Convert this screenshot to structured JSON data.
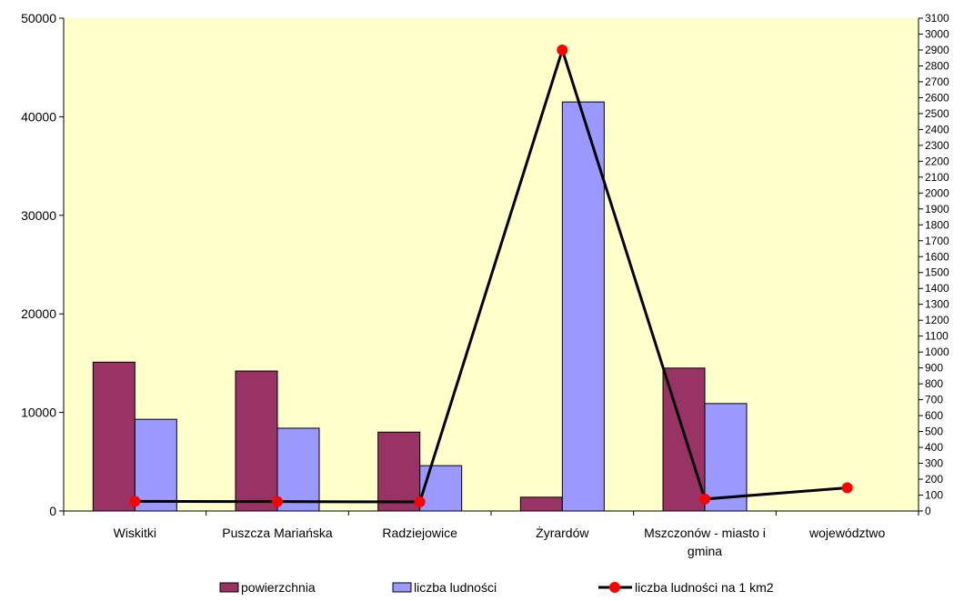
{
  "chart_data": {
    "type": "bar",
    "categories": [
      "Wiskitki",
      "Puszcza Mariańska",
      "Radziejowice",
      "Żyrardów",
      "Mszczonów - miasto i gmina",
      "województwo"
    ],
    "category_label_lines": [
      [
        "Wiskitki"
      ],
      [
        "Puszcza Mariańska"
      ],
      [
        "Radziejowice"
      ],
      [
        "Żyrardów"
      ],
      [
        "Mszczonów - miasto i",
        "gmina"
      ],
      [
        "województwo"
      ]
    ],
    "series": [
      {
        "name": "powierzchnia",
        "kind": "bar",
        "axis": "left",
        "color": "#993366",
        "values": [
          15100,
          14200,
          8000,
          1400,
          14500,
          null
        ]
      },
      {
        "name": "liczba ludności",
        "kind": "bar",
        "axis": "left",
        "color": "#9999ff",
        "values": [
          9300,
          8400,
          4600,
          41500,
          10900,
          null
        ]
      },
      {
        "name": "liczba ludności na 1 km2",
        "kind": "line",
        "axis": "right",
        "color": "#000000",
        "marker_color": "#ff0000",
        "values": [
          61,
          59,
          57,
          2900,
          75,
          146
        ]
      }
    ],
    "y_left": {
      "min": 0,
      "max": 50000,
      "step": 10000,
      "ticks": [
        "0",
        "10000",
        "20000",
        "30000",
        "40000",
        "50000"
      ]
    },
    "y_right": {
      "min": 0,
      "max": 3100,
      "step": 100
    },
    "plot_background": "#ffffcc",
    "grid": false,
    "legend_position": "bottom",
    "title": "",
    "xlabel": "",
    "ylabel": ""
  }
}
